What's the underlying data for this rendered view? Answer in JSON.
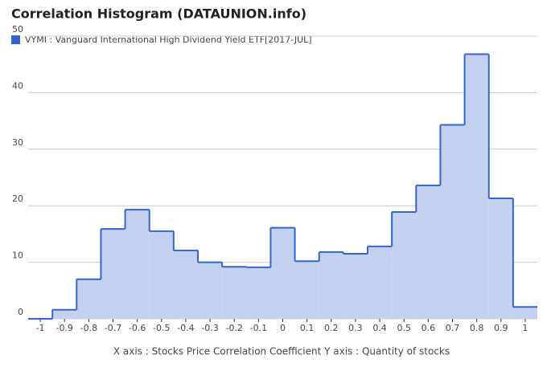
{
  "chart_data": {
    "type": "step-area",
    "title": "Correlation Histogram (DATAUNION.info)",
    "axis_caption": "X axis : Stocks Price Correlation Coefficient  Y axis : Quantity of stocks",
    "x": [
      -1,
      -0.9,
      -0.8,
      -0.7,
      -0.6,
      -0.5,
      -0.4,
      -0.3,
      -0.2,
      -0.1,
      0,
      0.1,
      0.2,
      0.3,
      0.4,
      0.5,
      0.6,
      0.7,
      0.8,
      0.9,
      1
    ],
    "series": [
      {
        "name": "VYMI : Vanguard International High Dividend Yield ETF[2017-JUL]",
        "color": "#3366cc",
        "fill": "#c3d0f0",
        "values": [
          0,
          1.6,
          7.0,
          15.9,
          19.3,
          15.5,
          12.1,
          10.0,
          9.2,
          9.1,
          16.1,
          10.2,
          11.8,
          11.5,
          12.8,
          18.9,
          23.6,
          34.3,
          46.8,
          21.3,
          2.1
        ]
      }
    ],
    "xlim": [
      -1.05,
      1.05
    ],
    "xticks": [
      -1,
      -0.9,
      -0.8,
      -0.7,
      -0.6,
      -0.5,
      -0.4,
      -0.3,
      -0.2,
      -0.1,
      0,
      0.1,
      0.2,
      0.3,
      0.4,
      0.5,
      0.6,
      0.7,
      0.8,
      0.9,
      1
    ],
    "ylim": [
      0,
      50
    ],
    "yticks": [
      0,
      10,
      20,
      30,
      40,
      50
    ],
    "grid": true,
    "bin_width": 0.1
  }
}
